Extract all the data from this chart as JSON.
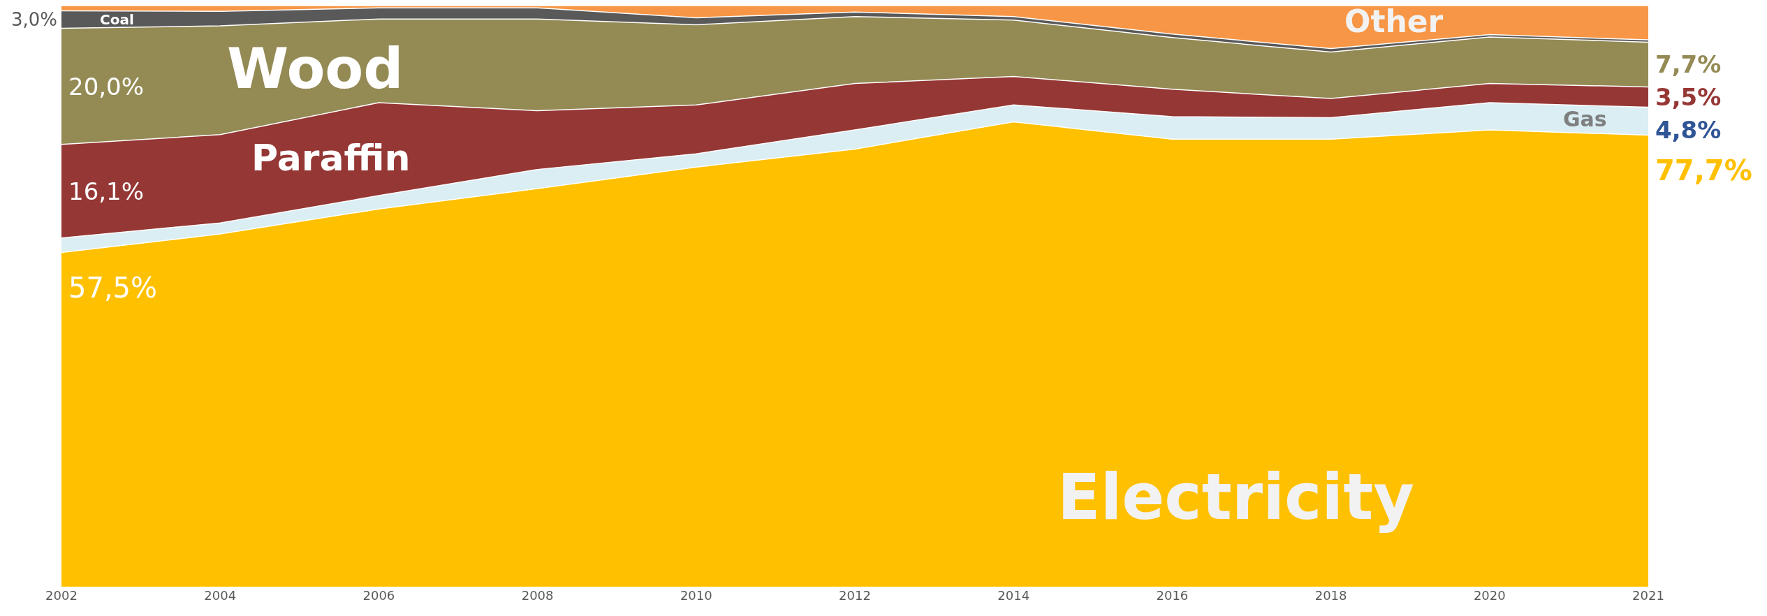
{
  "chart_data": {
    "type": "area",
    "stacked": true,
    "tick_labels": "x",
    "legend": false,
    "categories": [
      "2002",
      "2004",
      "2006",
      "2008",
      "2010",
      "2012",
      "2014",
      "2016",
      "2018",
      "2020",
      "2021"
    ],
    "series": [
      {
        "name": "Electricity",
        "color": "#ffc000",
        "values": [
          57.5,
          60.7,
          65.0,
          68.5,
          72.2,
          75.3,
          80.0,
          77.0,
          77.0,
          78.6,
          77.7
        ],
        "value_labels": [
          "57,5%",
          null,
          null,
          null,
          null,
          null,
          null,
          null,
          null,
          null,
          "77,7%"
        ]
      },
      {
        "name": "Gas",
        "color": "#daeef3",
        "values": [
          2.5,
          1.9,
          2.3,
          3.3,
          2.3,
          3.3,
          2.9,
          3.9,
          3.7,
          4.7,
          4.8
        ],
        "value_labels": [
          null,
          null,
          null,
          null,
          null,
          null,
          null,
          null,
          null,
          null,
          "4,8%"
        ]
      },
      {
        "name": "Paraffin",
        "color": "#953735",
        "values": [
          16.1,
          15.2,
          16.0,
          10.1,
          8.4,
          8.0,
          4.9,
          4.7,
          3.3,
          3.3,
          3.5
        ],
        "value_labels": [
          "16,1%",
          null,
          null,
          null,
          null,
          null,
          null,
          null,
          null,
          null,
          "3,5%"
        ]
      },
      {
        "name": "Wood",
        "color": "#948a54",
        "values": [
          20.0,
          18.7,
          14.4,
          15.8,
          13.8,
          11.5,
          9.7,
          8.9,
          8.0,
          8.0,
          7.7
        ],
        "value_labels": [
          "20,0%",
          null,
          null,
          null,
          null,
          null,
          null,
          null,
          null,
          null,
          "7,7%"
        ]
      },
      {
        "name": "Coal",
        "color": "#595959",
        "values": [
          3.0,
          2.5,
          1.9,
          1.9,
          1.2,
          0.8,
          0.6,
          0.6,
          0.6,
          0.4,
          0.4
        ],
        "value_labels": [
          "3,0%",
          null,
          null,
          null,
          null,
          null,
          null,
          null,
          null,
          null,
          null
        ]
      },
      {
        "name": "Other",
        "color": "#f79646",
        "values": [
          0.9,
          1.0,
          0.4,
          0.4,
          2.1,
          1.1,
          1.9,
          4.9,
          7.4,
          5.0,
          5.9
        ]
      }
    ]
  }
}
